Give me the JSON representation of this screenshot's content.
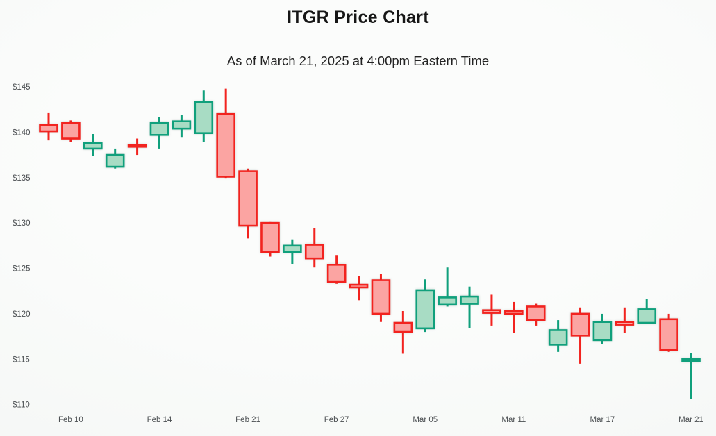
{
  "chart_data": {
    "type": "candlestick",
    "title": "ITGR Price Chart",
    "subtitle": "As of March 21, 2025 at 4:00pm Eastern Time",
    "grid": false,
    "legend": false,
    "y_axis": {
      "min": 110,
      "max": 145,
      "tick_prefix": "$",
      "ticks": [
        {
          "label": "$145",
          "value": 145
        },
        {
          "label": "$140",
          "value": 140
        },
        {
          "label": "$135",
          "value": 135
        },
        {
          "label": "$130",
          "value": 130
        },
        {
          "label": "$125",
          "value": 125
        },
        {
          "label": "$120",
          "value": 120
        },
        {
          "label": "$115",
          "value": 115
        },
        {
          "label": "$110",
          "value": 110
        }
      ]
    },
    "x_axis": {
      "ticks": [
        {
          "label": "Feb 10",
          "candle_index": 1
        },
        {
          "label": "Feb 14",
          "candle_index": 5
        },
        {
          "label": "Feb 21",
          "candle_index": 9
        },
        {
          "label": "Feb 27",
          "candle_index": 13
        },
        {
          "label": "Mar 05",
          "candle_index": 17
        },
        {
          "label": "Mar 11",
          "candle_index": 21
        },
        {
          "label": "Mar 17",
          "candle_index": 25
        },
        {
          "label": "Mar 21",
          "candle_index": 29
        }
      ]
    },
    "colors": {
      "up_fill": "#a8dcc4",
      "up_stroke": "#10a07c",
      "down_fill": "#fba4a2",
      "down_stroke": "#f2231f",
      "label": "#4b4f52",
      "title": "#161616"
    },
    "candles": [
      {
        "o": 140.8,
        "h": 142.1,
        "l": 139.1,
        "c": 140.1,
        "dir": "down"
      },
      {
        "o": 141.0,
        "h": 141.3,
        "l": 138.9,
        "c": 139.3,
        "dir": "down"
      },
      {
        "o": 138.2,
        "h": 139.8,
        "l": 137.4,
        "c": 138.8,
        "dir": "up"
      },
      {
        "o": 136.2,
        "h": 138.2,
        "l": 136.0,
        "c": 137.5,
        "dir": "up"
      },
      {
        "o": 138.6,
        "h": 139.3,
        "l": 137.5,
        "c": 138.4,
        "dir": "down"
      },
      {
        "o": 139.7,
        "h": 141.7,
        "l": 138.2,
        "c": 141.0,
        "dir": "up"
      },
      {
        "o": 140.4,
        "h": 141.9,
        "l": 139.4,
        "c": 141.2,
        "dir": "up"
      },
      {
        "o": 139.9,
        "h": 144.6,
        "l": 138.9,
        "c": 143.3,
        "dir": "up"
      },
      {
        "o": 142.0,
        "h": 144.8,
        "l": 134.9,
        "c": 135.1,
        "dir": "down"
      },
      {
        "o": 135.7,
        "h": 136.0,
        "l": 128.3,
        "c": 129.7,
        "dir": "down"
      },
      {
        "o": 130.0,
        "h": 130.1,
        "l": 126.3,
        "c": 126.8,
        "dir": "down"
      },
      {
        "o": 126.8,
        "h": 128.2,
        "l": 125.5,
        "c": 127.5,
        "dir": "up"
      },
      {
        "o": 127.6,
        "h": 129.4,
        "l": 125.1,
        "c": 126.1,
        "dir": "down"
      },
      {
        "o": 125.4,
        "h": 126.4,
        "l": 123.3,
        "c": 123.5,
        "dir": "down"
      },
      {
        "o": 123.2,
        "h": 124.2,
        "l": 121.5,
        "c": 122.9,
        "dir": "down"
      },
      {
        "o": 123.7,
        "h": 124.4,
        "l": 119.1,
        "c": 120.0,
        "dir": "down"
      },
      {
        "o": 119.0,
        "h": 120.3,
        "l": 115.6,
        "c": 118.0,
        "dir": "down"
      },
      {
        "o": 118.4,
        "h": 123.8,
        "l": 118.0,
        "c": 122.6,
        "dir": "up"
      },
      {
        "o": 121.0,
        "h": 125.1,
        "l": 120.8,
        "c": 121.8,
        "dir": "up"
      },
      {
        "o": 121.1,
        "h": 123.0,
        "l": 118.4,
        "c": 121.9,
        "dir": "up"
      },
      {
        "o": 120.4,
        "h": 122.1,
        "l": 118.7,
        "c": 120.1,
        "dir": "down"
      },
      {
        "o": 120.3,
        "h": 121.3,
        "l": 117.9,
        "c": 120.0,
        "dir": "down"
      },
      {
        "o": 120.8,
        "h": 121.1,
        "l": 118.7,
        "c": 119.3,
        "dir": "down"
      },
      {
        "o": 116.6,
        "h": 119.3,
        "l": 115.8,
        "c": 118.2,
        "dir": "up"
      },
      {
        "o": 120.0,
        "h": 120.7,
        "l": 114.5,
        "c": 117.6,
        "dir": "down"
      },
      {
        "o": 117.1,
        "h": 120.0,
        "l": 116.7,
        "c": 119.1,
        "dir": "up"
      },
      {
        "o": 119.1,
        "h": 120.7,
        "l": 117.9,
        "c": 118.8,
        "dir": "down"
      },
      {
        "o": 119.0,
        "h": 121.6,
        "l": 119.0,
        "c": 120.5,
        "dir": "up"
      },
      {
        "o": 119.4,
        "h": 120.0,
        "l": 115.8,
        "c": 116.0,
        "dir": "down"
      },
      {
        "o": 114.8,
        "h": 115.7,
        "l": 110.6,
        "c": 115.0,
        "dir": "up"
      }
    ]
  }
}
